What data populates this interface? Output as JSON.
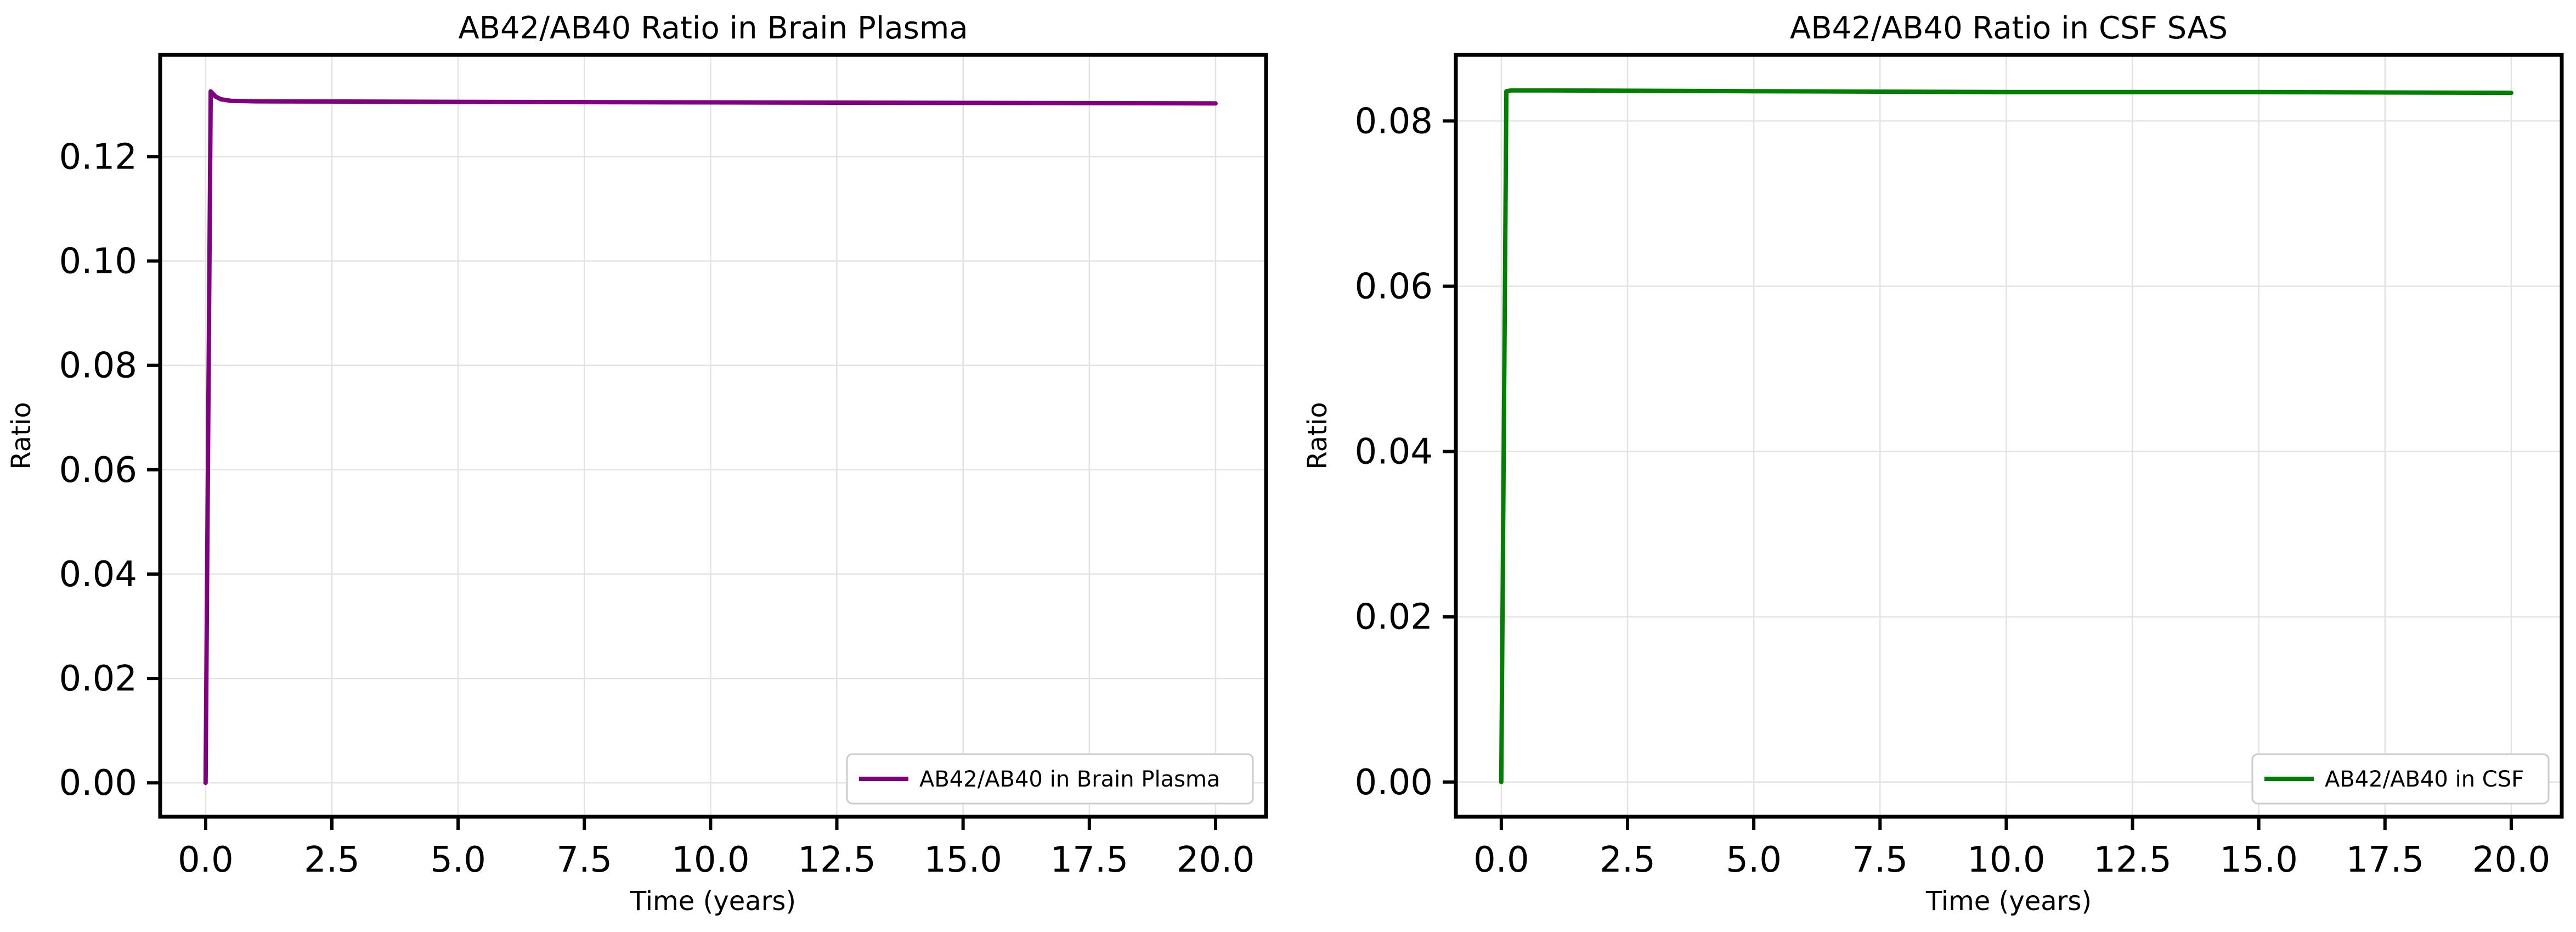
{
  "chart_data": [
    {
      "type": "line",
      "title": "AB42/AB40 Ratio in Brain Plasma",
      "xlabel": "Time (years)",
      "ylabel": "Ratio",
      "xlim": [
        -0.9,
        21.0
      ],
      "ylim": [
        -0.0065,
        0.1395
      ],
      "xticks": [
        "0.0",
        "2.5",
        "5.0",
        "7.5",
        "10.0",
        "12.5",
        "15.0",
        "17.5",
        "20.0"
      ],
      "yticks": [
        "0.00",
        "0.02",
        "0.04",
        "0.06",
        "0.08",
        "0.10",
        "0.12"
      ],
      "grid": true,
      "legend_position": "lower-right",
      "series": [
        {
          "name": "AB42/AB40 in Brain Plasma",
          "color": "#800080",
          "x": [
            0.0,
            0.1,
            0.2,
            0.3,
            0.5,
            1.0,
            5.0,
            10.0,
            15.0,
            20.0
          ],
          "y": [
            0.0,
            0.1325,
            0.1315,
            0.131,
            0.1307,
            0.1306,
            0.1305,
            0.1304,
            0.1303,
            0.1302
          ]
        }
      ]
    },
    {
      "type": "line",
      "title": "AB42/AB40 Ratio in CSF SAS",
      "xlabel": "Time (years)",
      "ylabel": "Ratio",
      "xlim": [
        -0.9,
        21.0
      ],
      "ylim": [
        -0.0042,
        0.088
      ],
      "xticks": [
        "0.0",
        "2.5",
        "5.0",
        "7.5",
        "10.0",
        "12.5",
        "15.0",
        "17.5",
        "20.0"
      ],
      "yticks": [
        "0.00",
        "0.02",
        "0.04",
        "0.06",
        "0.08"
      ],
      "grid": true,
      "legend_position": "lower-right",
      "series": [
        {
          "name": "AB42/AB40 in CSF",
          "color": "#008000",
          "x": [
            0.0,
            0.1,
            0.2,
            1.0,
            5.0,
            10.0,
            15.0,
            20.0
          ],
          "y": [
            0.0,
            0.0836,
            0.0837,
            0.0837,
            0.0836,
            0.0835,
            0.0835,
            0.0834
          ]
        }
      ]
    }
  ]
}
